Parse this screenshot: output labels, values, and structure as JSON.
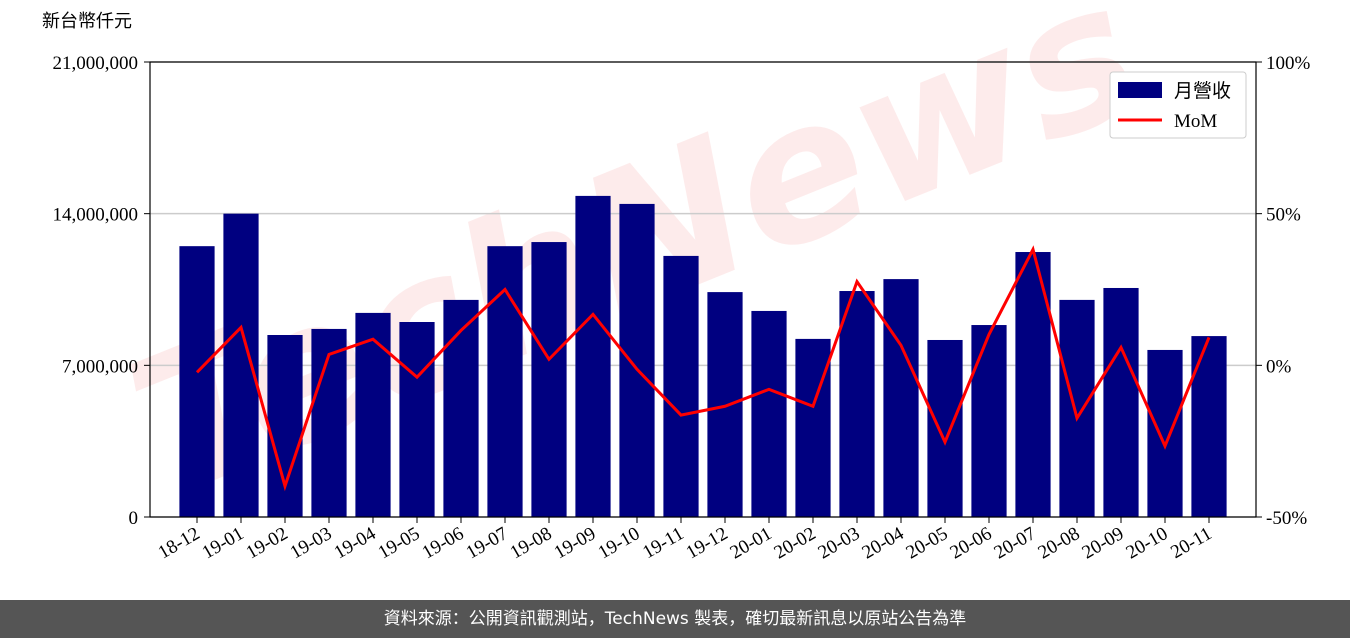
{
  "chart_data": {
    "type": "bar_line",
    "y_label": "新台幣仟元",
    "watermark": "TechNews",
    "categories": [
      "18-12",
      "19-01",
      "19-02",
      "19-03",
      "19-04",
      "19-05",
      "19-06",
      "19-07",
      "19-08",
      "19-09",
      "19-10",
      "19-11",
      "19-12",
      "20-01",
      "20-02",
      "20-03",
      "20-04",
      "20-05",
      "20-06",
      "20-07",
      "20-08",
      "20-09",
      "20-10",
      "20-11"
    ],
    "series": [
      {
        "name": "月營收",
        "color": "#000080",
        "type": "bar",
        "values": [
          12500000,
          14000000,
          8400000,
          8680000,
          9420000,
          9000000,
          10020000,
          12500000,
          12690000,
          14820000,
          14450000,
          12050000,
          10380000,
          9510000,
          8220000,
          10430000,
          10980000,
          8170000,
          8860000,
          12230000,
          10020000,
          10570000,
          7710000,
          8350000
        ]
      },
      {
        "name": "MoM",
        "color": "#ff0000",
        "type": "line",
        "axis": "y2",
        "values": [
          -2.3,
          12.5,
          -39.8,
          3.6,
          8.6,
          -3.9,
          11.5,
          25,
          2.0,
          16.8,
          -1.3,
          -16.4,
          -13.5,
          -7.9,
          -13.5,
          27.6,
          6.6,
          -25.3,
          10.2,
          38.2,
          -17.4,
          5.9,
          -26.6,
          9.2
        ]
      }
    ],
    "ylim": [
      0,
      21000000
    ],
    "yticks": [
      0,
      {
        "value": 7000000,
        "label": "7,000,000"
      },
      {
        "value": 14000000,
        "label": "14,000,000"
      },
      {
        "value": 21000000,
        "label": "21,000,000"
      }
    ],
    "y2lim": [
      -50,
      100
    ],
    "y2ticks": [
      {
        "value": -50,
        "label": "-50%"
      },
      {
        "value": 0,
        "label": "0%"
      },
      {
        "value": 50,
        "label": "50%"
      },
      {
        "value": 100,
        "label": "100%"
      }
    ],
    "grid": true,
    "legend": "upper right",
    "footer": "資料來源：公開資訊觀測站，TechNews 製表，確切最新訊息以原站公告為準"
  }
}
